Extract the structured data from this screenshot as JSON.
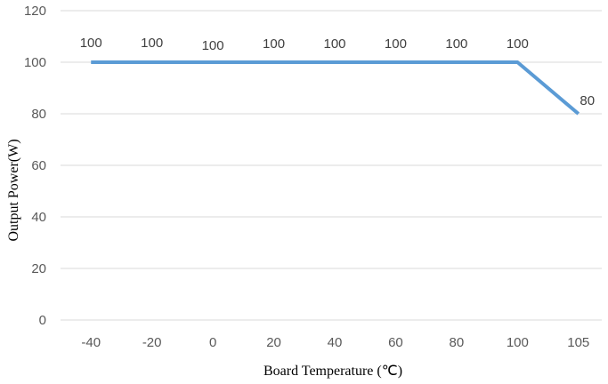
{
  "chart_data": {
    "type": "line",
    "categories": [
      "-40",
      "-20",
      "0",
      "20",
      "40",
      "60",
      "80",
      "100",
      "105"
    ],
    "series": [
      {
        "values": [
          100,
          100,
          100,
          100,
          100,
          100,
          100,
          100,
          80
        ],
        "color": "#5b9bd5"
      }
    ],
    "data_labels": [
      "100",
      "100",
      "100",
      "100",
      "100",
      "100",
      "100",
      "100",
      "80"
    ],
    "xlabel": "Board Temperature (℃)",
    "ylabel": "Output Power(W)",
    "ylim": [
      0,
      120
    ],
    "yticks": [
      "0",
      "20",
      "40",
      "60",
      "80",
      "100",
      "120"
    ],
    "grid": true,
    "legend": "none"
  }
}
